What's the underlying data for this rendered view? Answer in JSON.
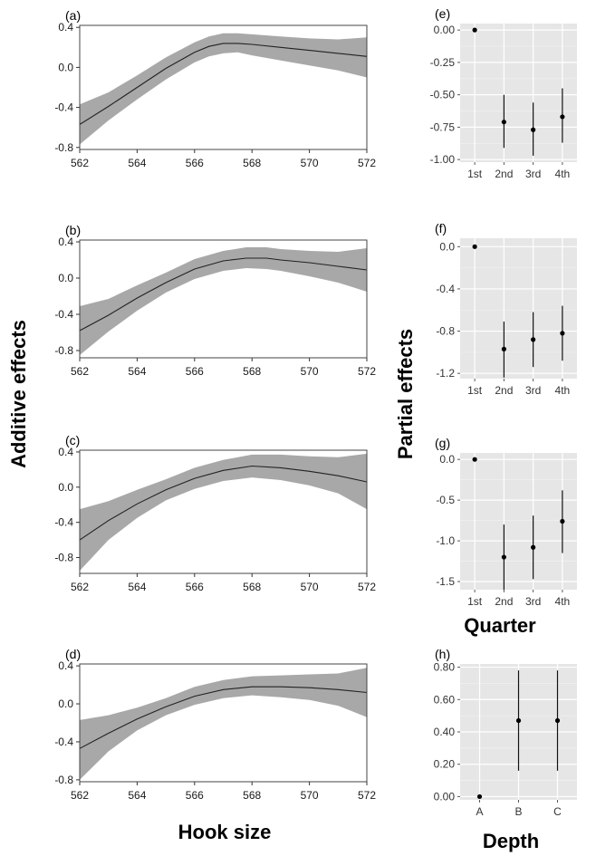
{
  "figure": {
    "ylabel_left": "Additive effects",
    "xlabel_left": "Hook size",
    "ylabel_right": "Partial effects",
    "xlabel_quarter": "Quarter",
    "xlabel_depth": "Depth"
  },
  "chart_data": [
    {
      "type": "line",
      "panel": "(a)",
      "title": "(a)",
      "xlabel": "",
      "ylabel": "",
      "xlim": [
        562,
        572
      ],
      "ylim": [
        -0.82,
        0.42
      ],
      "xticks": [
        562,
        564,
        566,
        568,
        570,
        572
      ],
      "yticks": [
        -0.8,
        -0.4,
        0.0,
        0.4
      ],
      "ytick_labels": [
        "-0.8",
        "-0.4",
        "0.0",
        "0.4"
      ],
      "x": [
        562,
        563,
        564,
        565,
        566,
        566.5,
        567,
        567.5,
        568,
        569,
        570,
        571,
        572
      ],
      "y": [
        -0.57,
        -0.39,
        -0.2,
        -0.01,
        0.15,
        0.21,
        0.24,
        0.24,
        0.23,
        0.2,
        0.17,
        0.14,
        0.11
      ],
      "lower": [
        -0.77,
        -0.53,
        -0.32,
        -0.12,
        0.05,
        0.11,
        0.14,
        0.15,
        0.12,
        0.07,
        0.02,
        -0.03,
        -0.1
      ],
      "upper": [
        -0.37,
        -0.25,
        -0.08,
        0.1,
        0.25,
        0.31,
        0.34,
        0.34,
        0.33,
        0.31,
        0.29,
        0.28,
        0.3
      ],
      "grid": false
    },
    {
      "type": "line",
      "panel": "(b)",
      "title": "(b)",
      "xlabel": "",
      "ylabel": "",
      "xlim": [
        562,
        572
      ],
      "ylim": [
        -0.88,
        0.42
      ],
      "xticks": [
        562,
        564,
        566,
        568,
        570,
        572
      ],
      "yticks": [
        -0.8,
        -0.4,
        0.0,
        0.4
      ],
      "ytick_labels": [
        "-0.8",
        "-0.4",
        "0.0",
        "0.4"
      ],
      "x": [
        562,
        563,
        564,
        565,
        566,
        567,
        567.8,
        568.5,
        569,
        570,
        571,
        572
      ],
      "y": [
        -0.58,
        -0.41,
        -0.22,
        -0.05,
        0.1,
        0.19,
        0.22,
        0.22,
        0.2,
        0.17,
        0.13,
        0.09
      ],
      "lower": [
        -0.85,
        -0.59,
        -0.36,
        -0.16,
        -0.01,
        0.08,
        0.11,
        0.1,
        0.08,
        0.02,
        -0.05,
        -0.15
      ],
      "upper": [
        -0.31,
        -0.23,
        -0.08,
        0.06,
        0.21,
        0.3,
        0.34,
        0.34,
        0.32,
        0.3,
        0.29,
        0.33
      ],
      "grid": false
    },
    {
      "type": "line",
      "panel": "(c)",
      "title": "(c)",
      "xlabel": "",
      "ylabel": "",
      "xlim": [
        562,
        572
      ],
      "ylim": [
        -0.98,
        0.42
      ],
      "xticks": [
        562,
        564,
        566,
        568,
        570,
        572
      ],
      "yticks": [
        -0.8,
        -0.4,
        0.0,
        0.4
      ],
      "ytick_labels": [
        "-0.8",
        "-0.4",
        "0.0",
        "0.4"
      ],
      "x": [
        562,
        563,
        564,
        565,
        566,
        567,
        568,
        569,
        570,
        571,
        572
      ],
      "y": [
        -0.6,
        -0.38,
        -0.19,
        -0.03,
        0.1,
        0.19,
        0.24,
        0.22,
        0.18,
        0.13,
        0.06
      ],
      "lower": [
        -0.95,
        -0.6,
        -0.35,
        -0.15,
        -0.02,
        0.07,
        0.11,
        0.08,
        0.02,
        -0.07,
        -0.25
      ],
      "upper": [
        -0.25,
        -0.16,
        -0.03,
        0.09,
        0.22,
        0.31,
        0.37,
        0.37,
        0.35,
        0.34,
        0.38
      ],
      "grid": false
    },
    {
      "type": "line",
      "panel": "(d)",
      "title": "(d)",
      "xlabel": "",
      "ylabel": "",
      "xlim": [
        562,
        572
      ],
      "ylim": [
        -0.82,
        0.42
      ],
      "xticks": [
        562,
        564,
        566,
        568,
        570,
        572
      ],
      "yticks": [
        -0.8,
        -0.4,
        0.0,
        0.4
      ],
      "ytick_labels": [
        "-0.8",
        "-0.4",
        "0.0",
        "0.4"
      ],
      "x": [
        562,
        563,
        564,
        565,
        566,
        567,
        568,
        569,
        570,
        571,
        572
      ],
      "y": [
        -0.47,
        -0.31,
        -0.16,
        -0.03,
        0.08,
        0.15,
        0.18,
        0.18,
        0.17,
        0.15,
        0.12
      ],
      "lower": [
        -0.8,
        -0.5,
        -0.28,
        -0.12,
        -0.01,
        0.06,
        0.09,
        0.07,
        0.04,
        -0.02,
        -0.14
      ],
      "upper": [
        -0.17,
        -0.12,
        -0.04,
        0.06,
        0.18,
        0.25,
        0.29,
        0.3,
        0.31,
        0.32,
        0.38
      ],
      "grid": false
    },
    {
      "type": "scatter",
      "panel": "(e)",
      "title": "(e)",
      "xlabel": "",
      "ylabel": "",
      "categories": [
        "1st",
        "2nd",
        "3rd",
        "4th"
      ],
      "ylim": [
        -1.02,
        0.05
      ],
      "yticks": [
        0.0,
        -0.25,
        -0.5,
        -0.75,
        -1.0
      ],
      "ytick_labels": [
        "0.00",
        "-0.25",
        "-0.50",
        "-0.75",
        "-1.00"
      ],
      "values": [
        0.0,
        -0.71,
        -0.77,
        -0.67
      ],
      "lower": [
        null,
        -0.91,
        -0.97,
        -0.87
      ],
      "upper": [
        null,
        -0.5,
        -0.56,
        -0.45
      ],
      "grid": true
    },
    {
      "type": "scatter",
      "panel": "(f)",
      "title": "(f)",
      "xlabel": "",
      "ylabel": "",
      "categories": [
        "1st",
        "2nd",
        "3rd",
        "4th"
      ],
      "ylim": [
        -1.25,
        0.08
      ],
      "yticks": [
        0.0,
        -0.4,
        -0.8,
        -1.2
      ],
      "ytick_labels": [
        "0.0",
        "-0.4",
        "-0.8",
        "-1.2"
      ],
      "values": [
        0.0,
        -0.97,
        -0.88,
        -0.82
      ],
      "lower": [
        null,
        -1.24,
        -1.14,
        -1.08
      ],
      "upper": [
        null,
        -0.71,
        -0.62,
        -0.56
      ],
      "grid": true
    },
    {
      "type": "scatter",
      "panel": "(g)",
      "title": "(g)",
      "xlabel": "Quarter",
      "ylabel": "",
      "categories": [
        "1st",
        "2nd",
        "3rd",
        "4th"
      ],
      "ylim": [
        -1.6,
        0.08
      ],
      "yticks": [
        0.0,
        -0.5,
        -1.0,
        -1.5
      ],
      "ytick_labels": [
        "0.0",
        "-0.5",
        "-1.0",
        "-1.5"
      ],
      "values": [
        0.0,
        -1.2,
        -1.08,
        -0.76
      ],
      "lower": [
        null,
        -1.6,
        -1.47,
        -1.15
      ],
      "upper": [
        null,
        -0.8,
        -0.69,
        -0.38
      ],
      "grid": true
    },
    {
      "type": "scatter",
      "panel": "(h)",
      "title": "(h)",
      "xlabel": "Depth",
      "ylabel": "",
      "categories": [
        "A",
        "B",
        "C"
      ],
      "ylim": [
        -0.02,
        0.82
      ],
      "yticks": [
        0.0,
        0.2,
        0.4,
        0.6,
        0.8
      ],
      "ytick_labels": [
        "0.00",
        "0.20",
        "0.40",
        "0.60",
        "0.80"
      ],
      "values": [
        0.0,
        0.47,
        0.47
      ],
      "lower": [
        null,
        0.16,
        0.16
      ],
      "upper": [
        null,
        0.78,
        0.78
      ],
      "grid": true
    }
  ]
}
